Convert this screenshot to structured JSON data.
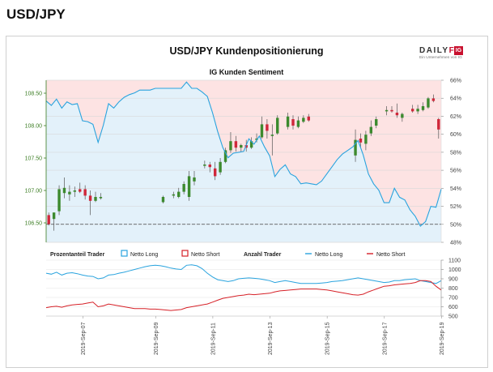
{
  "header": {
    "pair": "USD/JPY"
  },
  "chart_data": {
    "type": "candlestick-with-sentiment",
    "title": "USD/JPY Kundenpositionierung",
    "subtitle": "IG Kunden Sentiment",
    "brand": {
      "name_part1": "DAILY",
      "name_part2": "FX",
      "tagline": "Ein Unternehmen von IG",
      "badge": "IG"
    },
    "price_axis": {
      "ticks": [
        "108.50",
        "108.00",
        "107.50",
        "107.00",
        "106.50"
      ],
      "values": [
        108.5,
        108.0,
        107.5,
        107.0,
        106.5
      ],
      "ylim": [
        106.2,
        108.7
      ]
    },
    "percent_axis": {
      "ticks": [
        "66%",
        "64%",
        "62%",
        "60%",
        "58%",
        "56%",
        "54%",
        "52%",
        "50%",
        "48%"
      ],
      "values": [
        66,
        64,
        62,
        60,
        58,
        56,
        54,
        52,
        50,
        48
      ],
      "ylim": [
        48,
        66
      ]
    },
    "reference_line_pct": 50,
    "net_long_pct": [
      63.7,
      63.2,
      63.9,
      62.9,
      63.6,
      63.3,
      63.4,
      61.5,
      61.4,
      61.1,
      59.1,
      61.0,
      63.4,
      62.9,
      63.6,
      64.1,
      64.4,
      64.6,
      64.9,
      64.9,
      64.9,
      65.1,
      65.1,
      65.1,
      65.1,
      65.1,
      65.1,
      65.8,
      65.1,
      65.1,
      64.7,
      64.2,
      62.4,
      60.3,
      58.5,
      57.4,
      57.9,
      58.0,
      58.1,
      59.5,
      58.9,
      59.8,
      58.6,
      57.6,
      55.3,
      56.1,
      56.6,
      55.6,
      55.3,
      54.5,
      54.6,
      54.5,
      54.4,
      54.8,
      55.6,
      56.4,
      57.2,
      57.8,
      58.2,
      58.6,
      59.3,
      57.7,
      55.6,
      54.5,
      53.8,
      52.4,
      52.4,
      54.0,
      53.0,
      52.7,
      51.6,
      50.9,
      49.8,
      50.3,
      52.0,
      51.9,
      53.9
    ],
    "candles": [
      {
        "x": 0.5,
        "o": 106.62,
        "h": 106.66,
        "l": 106.46,
        "c": 106.48
      },
      {
        "x": 1.5,
        "o": 106.56,
        "h": 106.66,
        "l": 106.38,
        "c": 106.66
      },
      {
        "x": 2.5,
        "o": 106.68,
        "h": 107.08,
        "l": 106.62,
        "c": 107.02
      },
      {
        "x": 3.5,
        "o": 106.96,
        "h": 107.2,
        "l": 106.88,
        "c": 107.04
      },
      {
        "x": 4.5,
        "o": 106.94,
        "h": 107.08,
        "l": 106.84,
        "c": 106.98
      },
      {
        "x": 5.5,
        "o": 106.98,
        "h": 107.06,
        "l": 106.9,
        "c": 107.0
      },
      {
        "x": 6.5,
        "o": 107.02,
        "h": 107.12,
        "l": 106.96,
        "c": 106.98
      },
      {
        "x": 7.5,
        "o": 107.02,
        "h": 107.08,
        "l": 106.86,
        "c": 106.92
      },
      {
        "x": 8.5,
        "o": 106.92,
        "h": 107.0,
        "l": 106.62,
        "c": 106.84
      },
      {
        "x": 9.5,
        "o": 106.84,
        "h": 106.98,
        "l": 106.82,
        "c": 106.9
      },
      {
        "x": 10.5,
        "o": 106.88,
        "h": 106.96,
        "l": 106.86,
        "c": 106.9
      },
      {
        "x": 22.5,
        "o": 106.82,
        "h": 106.92,
        "l": 106.8,
        "c": 106.9
      },
      {
        "x": 24.5,
        "o": 106.92,
        "h": 106.98,
        "l": 106.88,
        "c": 106.94
      },
      {
        "x": 25.5,
        "o": 106.9,
        "h": 107.04,
        "l": 106.88,
        "c": 106.98
      },
      {
        "x": 26.5,
        "o": 106.98,
        "h": 107.14,
        "l": 106.94,
        "c": 107.1
      },
      {
        "x": 27.5,
        "o": 106.9,
        "h": 107.3,
        "l": 106.84,
        "c": 107.22
      },
      {
        "x": 28.5,
        "o": 107.14,
        "h": 107.3,
        "l": 107.08,
        "c": 107.2
      },
      {
        "x": 30.5,
        "o": 107.38,
        "h": 107.46,
        "l": 107.34,
        "c": 107.4
      },
      {
        "x": 31.5,
        "o": 107.4,
        "h": 107.44,
        "l": 107.28,
        "c": 107.36
      },
      {
        "x": 32.5,
        "o": 107.34,
        "h": 107.44,
        "l": 107.16,
        "c": 107.22
      },
      {
        "x": 33.5,
        "o": 107.28,
        "h": 107.5,
        "l": 107.24,
        "c": 107.44
      },
      {
        "x": 34.5,
        "o": 107.44,
        "h": 107.66,
        "l": 107.42,
        "c": 107.62
      },
      {
        "x": 35.5,
        "o": 107.62,
        "h": 107.9,
        "l": 107.58,
        "c": 107.76
      },
      {
        "x": 36.5,
        "o": 107.76,
        "h": 107.84,
        "l": 107.6,
        "c": 107.66
      },
      {
        "x": 37.5,
        "o": 107.66,
        "h": 107.72,
        "l": 107.6,
        "c": 107.7
      },
      {
        "x": 38.5,
        "o": 107.7,
        "h": 107.78,
        "l": 107.6,
        "c": 107.66
      },
      {
        "x": 39.5,
        "o": 107.66,
        "h": 107.82,
        "l": 107.64,
        "c": 107.76
      },
      {
        "x": 40.5,
        "o": 107.78,
        "h": 107.88,
        "l": 107.74,
        "c": 107.8
      },
      {
        "x": 41.5,
        "o": 107.82,
        "h": 108.14,
        "l": 107.8,
        "c": 108.02
      },
      {
        "x": 42.5,
        "o": 108.02,
        "h": 108.1,
        "l": 107.8,
        "c": 107.92
      },
      {
        "x": 43.5,
        "o": 107.84,
        "h": 108.02,
        "l": 107.54,
        "c": 107.86
      },
      {
        "x": 44.5,
        "o": 107.88,
        "h": 108.16,
        "l": 107.86,
        "c": 108.12
      },
      {
        "x": 46.5,
        "o": 107.98,
        "h": 108.2,
        "l": 107.94,
        "c": 108.14
      },
      {
        "x": 47.5,
        "o": 108.1,
        "h": 108.16,
        "l": 107.94,
        "c": 108.0
      },
      {
        "x": 48.5,
        "o": 107.98,
        "h": 108.14,
        "l": 107.96,
        "c": 108.08
      },
      {
        "x": 49.5,
        "o": 108.06,
        "h": 108.16,
        "l": 108.04,
        "c": 108.12
      },
      {
        "x": 50.5,
        "o": 108.14,
        "h": 108.18,
        "l": 108.06,
        "c": 108.08
      },
      {
        "x": 59.5,
        "o": 107.54,
        "h": 107.94,
        "l": 107.44,
        "c": 107.78
      },
      {
        "x": 60.5,
        "o": 107.8,
        "h": 107.88,
        "l": 107.66,
        "c": 107.74
      },
      {
        "x": 61.5,
        "o": 107.72,
        "h": 107.92,
        "l": 107.62,
        "c": 107.86
      },
      {
        "x": 62.5,
        "o": 107.88,
        "h": 108.08,
        "l": 107.84,
        "c": 107.98
      },
      {
        "x": 63.5,
        "o": 108.0,
        "h": 108.14,
        "l": 107.96,
        "c": 108.1
      },
      {
        "x": 65.5,
        "o": 108.22,
        "h": 108.3,
        "l": 108.16,
        "c": 108.24
      },
      {
        "x": 66.5,
        "o": 108.24,
        "h": 108.3,
        "l": 108.2,
        "c": 108.22
      },
      {
        "x": 67.5,
        "o": 108.2,
        "h": 108.34,
        "l": 108.12,
        "c": 108.16
      },
      {
        "x": 68.5,
        "o": 108.12,
        "h": 108.2,
        "l": 108.06,
        "c": 108.18
      },
      {
        "x": 70.5,
        "o": 108.26,
        "h": 108.32,
        "l": 108.2,
        "c": 108.22
      },
      {
        "x": 71.5,
        "o": 108.22,
        "h": 108.32,
        "l": 108.18,
        "c": 108.26
      },
      {
        "x": 72.5,
        "o": 108.24,
        "h": 108.36,
        "l": 108.22,
        "c": 108.3
      },
      {
        "x": 73.5,
        "o": 108.28,
        "h": 108.44,
        "l": 108.26,
        "c": 108.42
      },
      {
        "x": 74.5,
        "o": 108.42,
        "h": 108.48,
        "l": 108.36,
        "c": 108.38
      },
      {
        "x": 75.5,
        "o": 108.1,
        "h": 108.12,
        "l": 107.8,
        "c": 107.94
      }
    ],
    "colors": {
      "up": "#3c8a2e",
      "down": "#d0273a",
      "long": "#29a3de",
      "short": "#d62027"
    },
    "bottom_panel": {
      "legend": {
        "pct_label": "Prozentanteil Trader",
        "long": "Netto Long",
        "short": "Netto Short",
        "count_label": "Anzahl Trader"
      },
      "y_ticks": [
        "1100",
        "1000",
        "900",
        "800",
        "700",
        "600",
        "500"
      ],
      "y_values": [
        1100,
        1000,
        900,
        800,
        700,
        600,
        500
      ],
      "ylim": [
        500,
        1100
      ],
      "long_traders": [
        960,
        950,
        970,
        940,
        960,
        965,
        955,
        940,
        930,
        925,
        900,
        910,
        940,
        945,
        960,
        970,
        985,
        1000,
        1015,
        1030,
        1040,
        1045,
        1040,
        1030,
        1015,
        1005,
        1000,
        1045,
        1050,
        1040,
        1010,
        960,
        920,
        890,
        880,
        870,
        880,
        900,
        905,
        910,
        905,
        900,
        890,
        880,
        860,
        870,
        880,
        870,
        860,
        850,
        850,
        850,
        850,
        855,
        860,
        870,
        875,
        880,
        890,
        900,
        910,
        900,
        890,
        880,
        870,
        860,
        865,
        880,
        880,
        890,
        895,
        900,
        880,
        870,
        860,
        850,
        880
      ],
      "short_traders": [
        590,
        600,
        605,
        595,
        610,
        620,
        625,
        630,
        640,
        650,
        600,
        610,
        630,
        620,
        610,
        600,
        590,
        580,
        580,
        580,
        575,
        575,
        570,
        565,
        560,
        565,
        570,
        590,
        600,
        610,
        620,
        630,
        650,
        670,
        690,
        700,
        710,
        720,
        725,
        735,
        730,
        735,
        740,
        745,
        760,
        770,
        775,
        780,
        785,
        790,
        790,
        790,
        790,
        785,
        780,
        770,
        760,
        750,
        740,
        730,
        725,
        735,
        760,
        780,
        800,
        820,
        825,
        835,
        840,
        845,
        850,
        860,
        880,
        880,
        870,
        820,
        780
      ]
    },
    "dates": [
      "2019-Sep-07",
      "2019-Sep-09",
      "2019-Sep-11",
      "2019-Sep-13",
      "2019-Sep-15",
      "2019-Sep-17",
      "2019-Sep-19"
    ],
    "date_index": [
      8,
      22,
      33,
      44,
      55,
      66,
      77
    ]
  }
}
